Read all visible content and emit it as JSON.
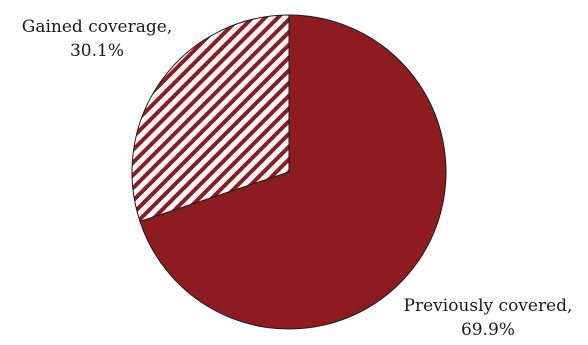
{
  "chart_data": {
    "type": "pie",
    "title": "",
    "slices": [
      {
        "name": "Gained coverage,",
        "value": 30.1,
        "percent_label": "30.1%",
        "fill": "hatch",
        "color": "#8e1b1f"
      },
      {
        "name": "Previously covered,",
        "value": 69.9,
        "percent_label": "69.9%",
        "fill": "solid",
        "color": "#8e1b1f"
      }
    ],
    "start": "12 o'clock",
    "direction": "counterclockwise for the first slice",
    "legend": "none"
  }
}
